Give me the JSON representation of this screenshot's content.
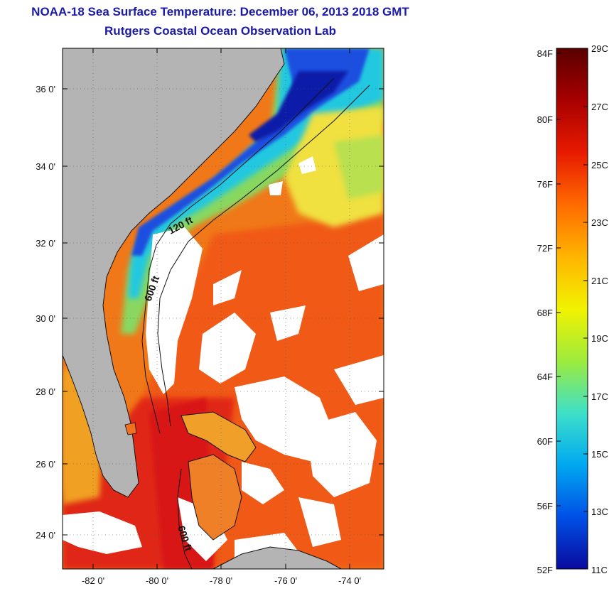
{
  "header": {
    "title": "NOAA-18 Sea Surface Temperature:  December 06, 2013 2018 GMT",
    "subtitle": "Rutgers Coastal Ocean Observation Lab"
  },
  "map": {
    "lat_ticks": [
      "36 0'",
      "34 0'",
      "32 0'",
      "30 0'",
      "28 0'",
      "26 0'",
      "24 0'"
    ],
    "lon_ticks": [
      "-82 0'",
      "-80 0'",
      "-78 0'",
      "-76 0'",
      "-74 0'"
    ],
    "contour_labels": [
      "120 ft",
      "600 ft",
      "600 ft"
    ],
    "land_color": "#b4b4b4",
    "cloud_color": "#ffffff"
  },
  "colorbar": {
    "fahrenheit_labels": [
      "84F",
      "80F",
      "76F",
      "72F",
      "68F",
      "64F",
      "60F",
      "56F",
      "52F"
    ],
    "celsius_labels": [
      "29C",
      "27C",
      "25C",
      "23C",
      "21C",
      "19C",
      "17C",
      "15C",
      "13C",
      "11C"
    ],
    "colors": [
      "#5a0000",
      "#a80000",
      "#e81a00",
      "#ff6a00",
      "#ffb400",
      "#f2f200",
      "#9eeb3c",
      "#3ee0c8",
      "#00a8f0",
      "#0050e6",
      "#0a0a9e"
    ]
  }
}
